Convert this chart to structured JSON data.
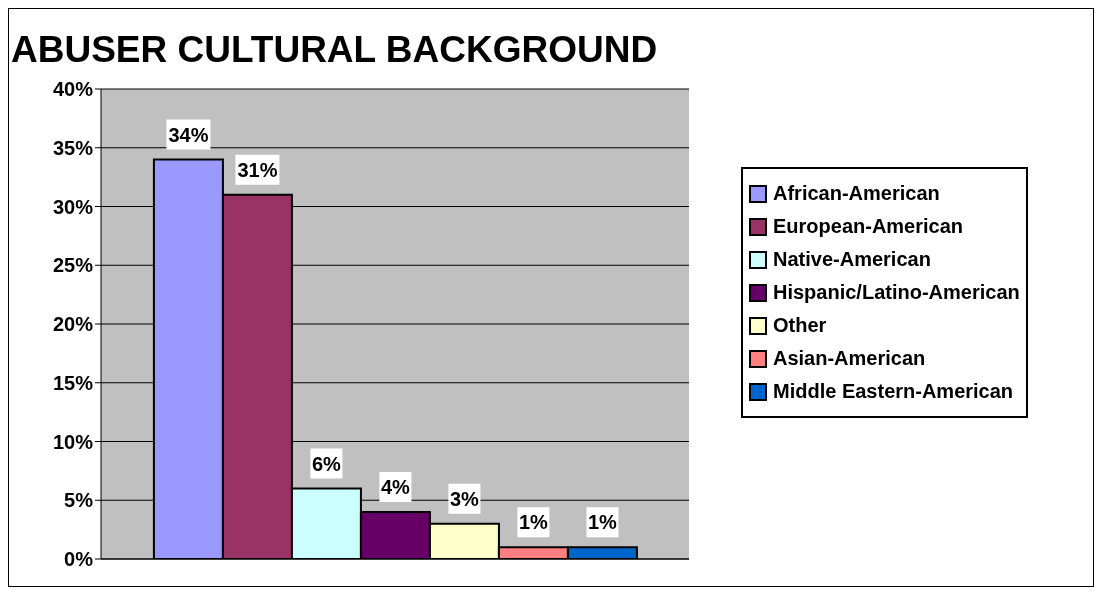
{
  "chart_data": {
    "type": "bar",
    "title": "ABUSER CULTURAL BACKGROUND",
    "categories": [
      null
    ],
    "series": [
      {
        "name": "African-American",
        "color": "#9999ff",
        "values": [
          34
        ],
        "value_labels": [
          "34%"
        ]
      },
      {
        "name": "European-American",
        "color": "#993366",
        "values": [
          31
        ],
        "value_labels": [
          "31%"
        ]
      },
      {
        "name": "Native-American",
        "color": "#ccffff",
        "values": [
          6
        ],
        "value_labels": [
          "6%"
        ]
      },
      {
        "name": "Hispanic/Latino-American",
        "color": "#660066",
        "values": [
          4
        ],
        "value_labels": [
          "4%"
        ]
      },
      {
        "name": "Other",
        "color": "#ffffcc",
        "values": [
          3
        ],
        "value_labels": [
          "3%"
        ]
      },
      {
        "name": "Asian-American",
        "color": "#ff8080",
        "values": [
          1
        ],
        "value_labels": [
          "1%"
        ]
      },
      {
        "name": "Middle Eastern-American",
        "color": "#0066cc",
        "values": [
          1
        ],
        "value_labels": [
          "1%"
        ]
      }
    ],
    "ylim": [
      0,
      40
    ],
    "yticks": [
      {
        "value": 0,
        "label": "0%"
      },
      {
        "value": 5,
        "label": "5%"
      },
      {
        "value": 10,
        "label": "10%"
      },
      {
        "value": 15,
        "label": "15%"
      },
      {
        "value": 20,
        "label": "20%"
      },
      {
        "value": 25,
        "label": "25%"
      },
      {
        "value": 30,
        "label": "30%"
      },
      {
        "value": 35,
        "label": "35%"
      },
      {
        "value": 40,
        "label": "40%"
      }
    ],
    "grid": "y",
    "legend": "right",
    "tick_labels": "y"
  }
}
